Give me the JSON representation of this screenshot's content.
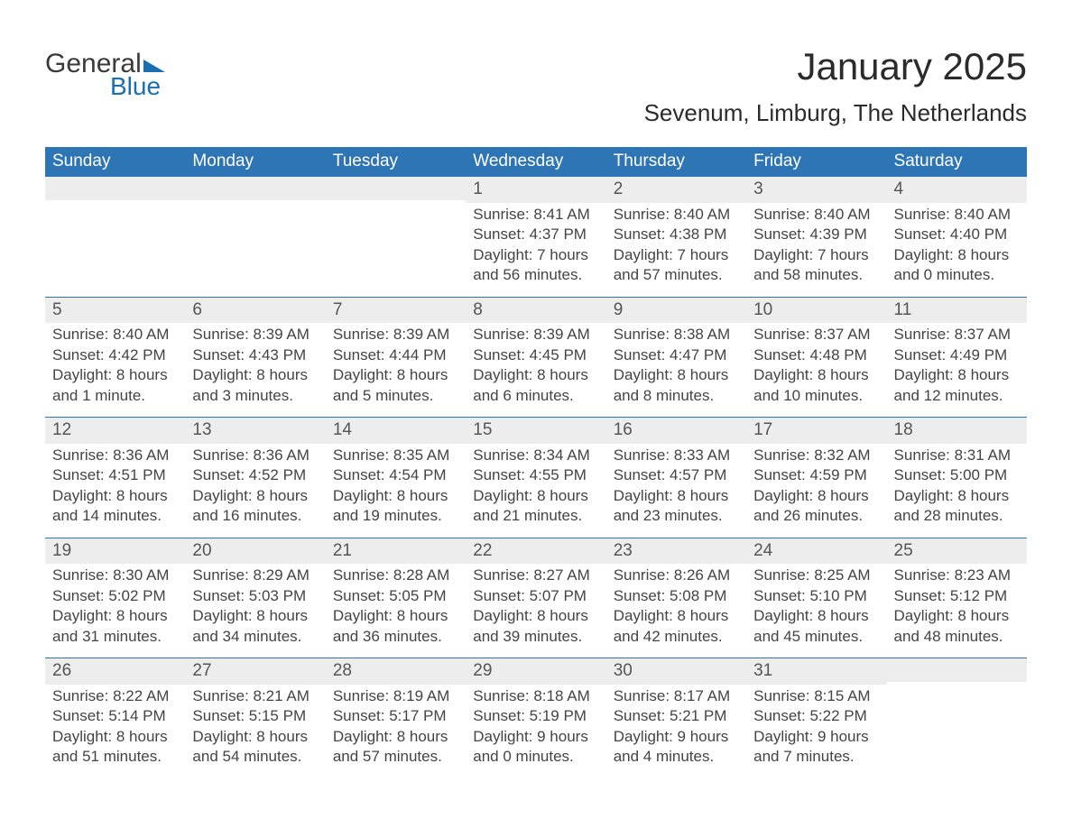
{
  "brand": {
    "line1": "General",
    "line2": "Blue"
  },
  "title": "January 2025",
  "location": "Sevenum, Limburg, The Netherlands",
  "colors": {
    "header_blue": "#2e75b6",
    "divider_blue": "#2e75b6",
    "row_alt": "#ededed",
    "logo_blue": "#1a6fb3",
    "text_dark": "#3a3a3a",
    "background": "#ffffff"
  },
  "calendar": {
    "type": "table",
    "day_headers": [
      "Sunday",
      "Monday",
      "Tuesday",
      "Wednesday",
      "Thursday",
      "Friday",
      "Saturday"
    ],
    "labels": {
      "sunrise": "Sunrise:",
      "sunset": "Sunset:",
      "daylight": "Daylight:"
    },
    "weeks": [
      [
        {
          "n": "",
          "sunrise": "",
          "sunset": "",
          "daylight1": "",
          "daylight2": ""
        },
        {
          "n": "",
          "sunrise": "",
          "sunset": "",
          "daylight1": "",
          "daylight2": ""
        },
        {
          "n": "",
          "sunrise": "",
          "sunset": "",
          "daylight1": "",
          "daylight2": ""
        },
        {
          "n": "1",
          "sunrise": "8:41 AM",
          "sunset": "4:37 PM",
          "daylight1": "7 hours",
          "daylight2": "and 56 minutes."
        },
        {
          "n": "2",
          "sunrise": "8:40 AM",
          "sunset": "4:38 PM",
          "daylight1": "7 hours",
          "daylight2": "and 57 minutes."
        },
        {
          "n": "3",
          "sunrise": "8:40 AM",
          "sunset": "4:39 PM",
          "daylight1": "7 hours",
          "daylight2": "and 58 minutes."
        },
        {
          "n": "4",
          "sunrise": "8:40 AM",
          "sunset": "4:40 PM",
          "daylight1": "8 hours",
          "daylight2": "and 0 minutes."
        }
      ],
      [
        {
          "n": "5",
          "sunrise": "8:40 AM",
          "sunset": "4:42 PM",
          "daylight1": "8 hours",
          "daylight2": "and 1 minute."
        },
        {
          "n": "6",
          "sunrise": "8:39 AM",
          "sunset": "4:43 PM",
          "daylight1": "8 hours",
          "daylight2": "and 3 minutes."
        },
        {
          "n": "7",
          "sunrise": "8:39 AM",
          "sunset": "4:44 PM",
          "daylight1": "8 hours",
          "daylight2": "and 5 minutes."
        },
        {
          "n": "8",
          "sunrise": "8:39 AM",
          "sunset": "4:45 PM",
          "daylight1": "8 hours",
          "daylight2": "and 6 minutes."
        },
        {
          "n": "9",
          "sunrise": "8:38 AM",
          "sunset": "4:47 PM",
          "daylight1": "8 hours",
          "daylight2": "and 8 minutes."
        },
        {
          "n": "10",
          "sunrise": "8:37 AM",
          "sunset": "4:48 PM",
          "daylight1": "8 hours",
          "daylight2": "and 10 minutes."
        },
        {
          "n": "11",
          "sunrise": "8:37 AM",
          "sunset": "4:49 PM",
          "daylight1": "8 hours",
          "daylight2": "and 12 minutes."
        }
      ],
      [
        {
          "n": "12",
          "sunrise": "8:36 AM",
          "sunset": "4:51 PM",
          "daylight1": "8 hours",
          "daylight2": "and 14 minutes."
        },
        {
          "n": "13",
          "sunrise": "8:36 AM",
          "sunset": "4:52 PM",
          "daylight1": "8 hours",
          "daylight2": "and 16 minutes."
        },
        {
          "n": "14",
          "sunrise": "8:35 AM",
          "sunset": "4:54 PM",
          "daylight1": "8 hours",
          "daylight2": "and 19 minutes."
        },
        {
          "n": "15",
          "sunrise": "8:34 AM",
          "sunset": "4:55 PM",
          "daylight1": "8 hours",
          "daylight2": "and 21 minutes."
        },
        {
          "n": "16",
          "sunrise": "8:33 AM",
          "sunset": "4:57 PM",
          "daylight1": "8 hours",
          "daylight2": "and 23 minutes."
        },
        {
          "n": "17",
          "sunrise": "8:32 AM",
          "sunset": "4:59 PM",
          "daylight1": "8 hours",
          "daylight2": "and 26 minutes."
        },
        {
          "n": "18",
          "sunrise": "8:31 AM",
          "sunset": "5:00 PM",
          "daylight1": "8 hours",
          "daylight2": "and 28 minutes."
        }
      ],
      [
        {
          "n": "19",
          "sunrise": "8:30 AM",
          "sunset": "5:02 PM",
          "daylight1": "8 hours",
          "daylight2": "and 31 minutes."
        },
        {
          "n": "20",
          "sunrise": "8:29 AM",
          "sunset": "5:03 PM",
          "daylight1": "8 hours",
          "daylight2": "and 34 minutes."
        },
        {
          "n": "21",
          "sunrise": "8:28 AM",
          "sunset": "5:05 PM",
          "daylight1": "8 hours",
          "daylight2": "and 36 minutes."
        },
        {
          "n": "22",
          "sunrise": "8:27 AM",
          "sunset": "5:07 PM",
          "daylight1": "8 hours",
          "daylight2": "and 39 minutes."
        },
        {
          "n": "23",
          "sunrise": "8:26 AM",
          "sunset": "5:08 PM",
          "daylight1": "8 hours",
          "daylight2": "and 42 minutes."
        },
        {
          "n": "24",
          "sunrise": "8:25 AM",
          "sunset": "5:10 PM",
          "daylight1": "8 hours",
          "daylight2": "and 45 minutes."
        },
        {
          "n": "25",
          "sunrise": "8:23 AM",
          "sunset": "5:12 PM",
          "daylight1": "8 hours",
          "daylight2": "and 48 minutes."
        }
      ],
      [
        {
          "n": "26",
          "sunrise": "8:22 AM",
          "sunset": "5:14 PM",
          "daylight1": "8 hours",
          "daylight2": "and 51 minutes."
        },
        {
          "n": "27",
          "sunrise": "8:21 AM",
          "sunset": "5:15 PM",
          "daylight1": "8 hours",
          "daylight2": "and 54 minutes."
        },
        {
          "n": "28",
          "sunrise": "8:19 AM",
          "sunset": "5:17 PM",
          "daylight1": "8 hours",
          "daylight2": "and 57 minutes."
        },
        {
          "n": "29",
          "sunrise": "8:18 AM",
          "sunset": "5:19 PM",
          "daylight1": "9 hours",
          "daylight2": "and 0 minutes."
        },
        {
          "n": "30",
          "sunrise": "8:17 AM",
          "sunset": "5:21 PM",
          "daylight1": "9 hours",
          "daylight2": "and 4 minutes."
        },
        {
          "n": "31",
          "sunrise": "8:15 AM",
          "sunset": "5:22 PM",
          "daylight1": "9 hours",
          "daylight2": "and 7 minutes."
        },
        {
          "n": "",
          "sunrise": "",
          "sunset": "",
          "daylight1": "",
          "daylight2": ""
        }
      ]
    ]
  }
}
